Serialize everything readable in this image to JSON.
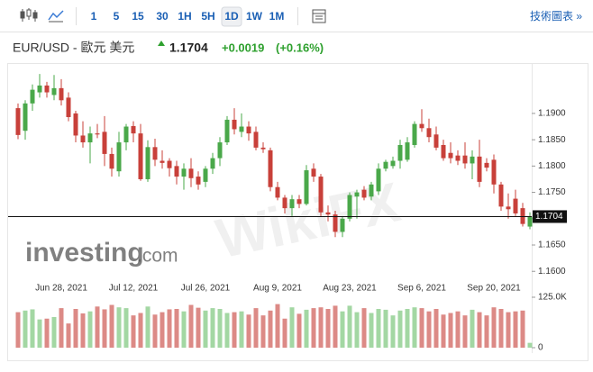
{
  "toolbar": {
    "intervals": [
      "1",
      "5",
      "15",
      "30",
      "1H",
      "5H",
      "1D",
      "1W",
      "1M"
    ],
    "selected": 6,
    "link": "技術圖表 »"
  },
  "quote": {
    "name": "EUR/USD - 歐元 美元",
    "price": 1.1704,
    "change": "+0.0019",
    "change_pct": "(+0.16%)",
    "color": "#2ea02e"
  },
  "watermarks": {
    "logo": "investing",
    "logo_suffix": ".com",
    "mark": "WikiFX"
  },
  "chart_data": [
    {
      "type": "candlestick",
      "categories": [
        null,
        null,
        null,
        null,
        null,
        null,
        "Jun 28, 2021",
        null,
        null,
        null,
        null,
        null,
        null,
        null,
        null,
        null,
        "Jul 12, 2021",
        null,
        null,
        null,
        null,
        null,
        null,
        null,
        null,
        null,
        "Jul 26, 2021",
        null,
        null,
        null,
        null,
        null,
        null,
        null,
        null,
        null,
        "Aug 9, 2021",
        null,
        null,
        null,
        null,
        null,
        null,
        null,
        null,
        null,
        "Aug 23, 2021",
        null,
        null,
        null,
        null,
        null,
        null,
        null,
        null,
        null,
        "Sep 6, 2021",
        null,
        null,
        null,
        null,
        null,
        null,
        null,
        null,
        null,
        "Sep 20, 2021",
        null,
        null,
        null,
        null,
        null
      ],
      "open": [
        1.191,
        1.1867,
        1.1919,
        1.194,
        1.1953,
        1.1935,
        1.1948,
        1.193,
        1.19,
        1.1858,
        1.1845,
        1.1862,
        1.1865,
        1.1823,
        1.179,
        1.1845,
        1.1876,
        1.1862,
        1.1775,
        1.1836,
        1.181,
        1.181,
        1.18,
        1.178,
        1.1795,
        1.178,
        1.177,
        1.1795,
        1.1815,
        1.1845,
        1.1888,
        1.1865,
        1.1875,
        1.1865,
        1.1835,
        1.183,
        1.176,
        1.174,
        1.172,
        1.1737,
        1.1728,
        1.1795,
        1.178,
        1.1712,
        1.1708,
        1.1675,
        1.17,
        1.1742,
        1.1755,
        1.1742,
        1.1752,
        1.1795,
        1.18,
        1.181,
        1.1812,
        1.184,
        1.188,
        1.1872,
        1.186,
        1.184,
        1.1825,
        1.182,
        1.182,
        1.1805,
        1.1818,
        1.1806,
        1.1812,
        1.1765,
        1.1723,
        1.1738,
        1.172,
        1.1685
      ],
      "high": [
        1.1919,
        1.1925,
        1.1955,
        1.1975,
        1.196,
        1.1973,
        1.1965,
        1.194,
        1.1905,
        1.1885,
        1.1875,
        1.188,
        1.1895,
        1.1835,
        1.1865,
        1.188,
        1.1885,
        1.188,
        1.1849,
        1.1852,
        1.183,
        1.1815,
        1.181,
        1.1805,
        1.1815,
        1.179,
        1.18,
        1.1825,
        1.1855,
        1.1895,
        1.191,
        1.19,
        1.1885,
        1.1875,
        1.1845,
        1.1835,
        1.177,
        1.1745,
        1.1745,
        1.1745,
        1.1802,
        1.1805,
        1.1785,
        1.1725,
        1.1715,
        1.1705,
        1.175,
        1.1755,
        1.1762,
        1.177,
        1.1805,
        1.1812,
        1.1818,
        1.185,
        1.1855,
        1.1885,
        1.1908,
        1.189,
        1.1875,
        1.185,
        1.1845,
        1.183,
        1.1845,
        1.183,
        1.185,
        1.1815,
        1.1822,
        1.177,
        1.1748,
        1.1755,
        1.173,
        1.1712
      ],
      "low": [
        1.1851,
        1.185,
        1.1905,
        1.193,
        1.193,
        1.1925,
        1.1915,
        1.1885,
        1.1845,
        1.1835,
        1.1805,
        1.1853,
        1.18,
        1.178,
        1.178,
        1.183,
        1.1845,
        1.1772,
        1.177,
        1.18,
        1.1795,
        1.178,
        1.1765,
        1.1755,
        1.176,
        1.1755,
        1.176,
        1.1785,
        1.18,
        1.184,
        1.186,
        1.1855,
        1.1848,
        1.183,
        1.1825,
        1.1752,
        1.1735,
        1.171,
        1.1705,
        1.172,
        1.1725,
        1.177,
        1.1705,
        1.1695,
        1.1665,
        1.1665,
        1.1695,
        1.17,
        1.1735,
        1.1735,
        1.1745,
        1.179,
        1.1795,
        1.1795,
        1.1808,
        1.1835,
        1.1865,
        1.1845,
        1.183,
        1.181,
        1.1805,
        1.1802,
        1.1795,
        1.1775,
        1.176,
        1.179,
        1.1748,
        1.1715,
        1.17,
        1.1705,
        1.1685,
        1.168
      ],
      "close": [
        1.1859,
        1.1919,
        1.1945,
        1.1953,
        1.194,
        1.1948,
        1.1925,
        1.1893,
        1.1858,
        1.1845,
        1.1862,
        1.186,
        1.1823,
        1.1795,
        1.1845,
        1.1875,
        1.1862,
        1.1775,
        1.1836,
        1.1812,
        1.1806,
        1.1796,
        1.178,
        1.1795,
        1.1777,
        1.1765,
        1.1795,
        1.1815,
        1.1845,
        1.1888,
        1.187,
        1.1875,
        1.1862,
        1.1835,
        1.1832,
        1.176,
        1.174,
        1.172,
        1.1737,
        1.1728,
        1.1792,
        1.178,
        1.1712,
        1.1708,
        1.1675,
        1.17,
        1.1745,
        1.175,
        1.174,
        1.1765,
        1.1795,
        1.1808,
        1.181,
        1.184,
        1.1845,
        1.188,
        1.1872,
        1.1855,
        1.1835,
        1.1815,
        1.1815,
        1.181,
        1.1805,
        1.1818,
        1.177,
        1.1797,
        1.1765,
        1.1723,
        1.1718,
        1.171,
        1.169,
        1.1704
      ],
      "up_color": "#4aa84a",
      "down_color": "#c8403a",
      "last_price": 1.1704,
      "ylim": [
        1.1585,
        1.1982
      ],
      "yticks": [
        {
          "value": 1.16,
          "label": "1.1600"
        },
        {
          "value": 1.165,
          "label": "1.1650"
        },
        {
          "value": 1.17,
          "label": "1.1700"
        },
        {
          "value": 1.175,
          "label": "1.1750"
        },
        {
          "value": 1.18,
          "label": "1.1800"
        },
        {
          "value": 1.185,
          "label": "1.1850"
        },
        {
          "value": 1.19,
          "label": "1.1900"
        }
      ],
      "grid": false
    },
    {
      "type": "bar",
      "values": [
        88000,
        92000,
        95000,
        70000,
        72000,
        76000,
        98000,
        60000,
        96000,
        85000,
        90000,
        102000,
        95000,
        106000,
        100000,
        98000,
        80000,
        86000,
        102000,
        82000,
        88000,
        95000,
        96000,
        90000,
        106000,
        99000,
        92000,
        98000,
        96000,
        86000,
        88000,
        90000,
        82000,
        98000,
        80000,
        92000,
        108000,
        72000,
        100000,
        84000,
        94000,
        98000,
        100000,
        96000,
        104000,
        90000,
        104000,
        88000,
        98000,
        86000,
        96000,
        94000,
        80000,
        92000,
        96000,
        100000,
        98000,
        90000,
        96000,
        82000,
        86000,
        90000,
        80000,
        94000,
        88000,
        80000,
        100000,
        96000,
        88000,
        90000,
        92000,
        12000
      ],
      "up_color": "#a3d7a3",
      "down_color": "#dc8a86",
      "ylim": [
        0,
        125000
      ],
      "yticks": [
        0,
        {
          "value": 125000,
          "label": "125.0K"
        }
      ]
    }
  ]
}
